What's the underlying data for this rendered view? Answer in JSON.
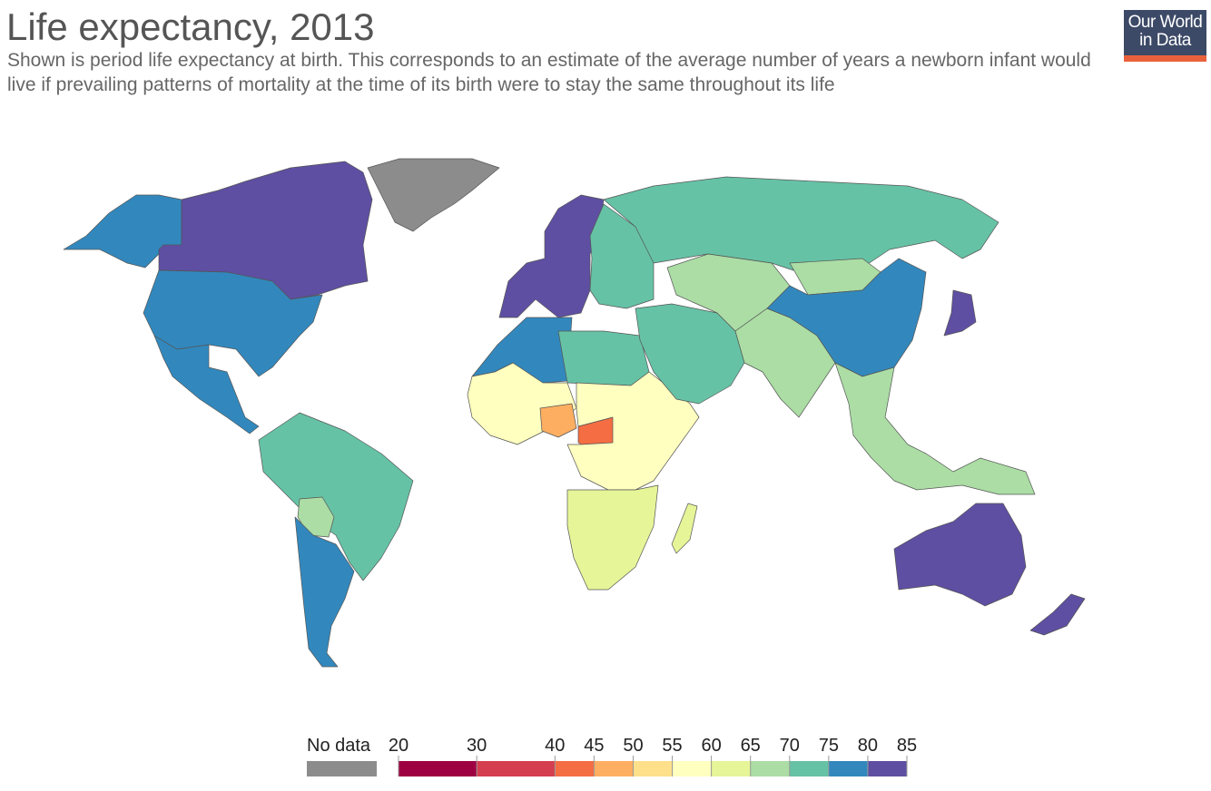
{
  "header": {
    "title": "Life expectancy, 2013",
    "subtitle": "Shown is period life expectancy at birth. This corresponds to an estimate of the average number of years a newborn infant would live if prevailing patterns of mortality at the time of its birth were to stay the same throughout its life"
  },
  "logo": {
    "line1": "Our World",
    "line2": "in Data"
  },
  "legend": {
    "no_data_label": "No data",
    "no_data_color": "#8c8c8c",
    "ticks": [
      "20",
      "30",
      "40",
      "45",
      "50",
      "55",
      "60",
      "65",
      "70",
      "75",
      "80",
      "85"
    ],
    "bins": [
      {
        "from": 20,
        "to": 30,
        "color": "#9e0142"
      },
      {
        "from": 30,
        "to": 40,
        "color": "#d53e4f"
      },
      {
        "from": 40,
        "to": 45,
        "color": "#f46d43"
      },
      {
        "from": 45,
        "to": 50,
        "color": "#fdae61"
      },
      {
        "from": 50,
        "to": 55,
        "color": "#fee08b"
      },
      {
        "from": 55,
        "to": 60,
        "color": "#ffffbf"
      },
      {
        "from": 60,
        "to": 65,
        "color": "#e6f598"
      },
      {
        "from": 65,
        "to": 70,
        "color": "#abdda4"
      },
      {
        "from": 70,
        "to": 75,
        "color": "#66c2a5"
      },
      {
        "from": 75,
        "to": 80,
        "color": "#3288bd"
      },
      {
        "from": 80,
        "to": 85,
        "color": "#5e4fa2"
      }
    ]
  },
  "regions": {
    "north_america_north": "#5e4fa2",
    "alaska": "#3288bd",
    "usa": "#3288bd",
    "mexico_central": "#3288bd",
    "greenland": "#8c8c8c",
    "south_america_north": "#66c2a5",
    "bolivia": "#abdda4",
    "southern_cone": "#3288bd",
    "western_europe": "#5e4fa2",
    "eastern_europe": "#66c2a5",
    "russia": "#66c2a5",
    "north_africa_west": "#3288bd",
    "north_africa_east": "#66c2a5",
    "west_africa": "#ffffbf",
    "central_african_republic": "#f46d43",
    "nigeria": "#fdae61",
    "central_africa": "#ffffbf",
    "southern_africa": "#e6f598",
    "madagascar": "#e6f598",
    "middle_east": "#66c2a5",
    "central_asia": "#abdda4",
    "south_asia": "#abdda4",
    "china": "#3288bd",
    "mongolia": "#abdda4",
    "japan": "#5e4fa2",
    "southeast_asia": "#abdda4",
    "australia": "#5e4fa2",
    "new_zealand": "#5e4fa2"
  }
}
